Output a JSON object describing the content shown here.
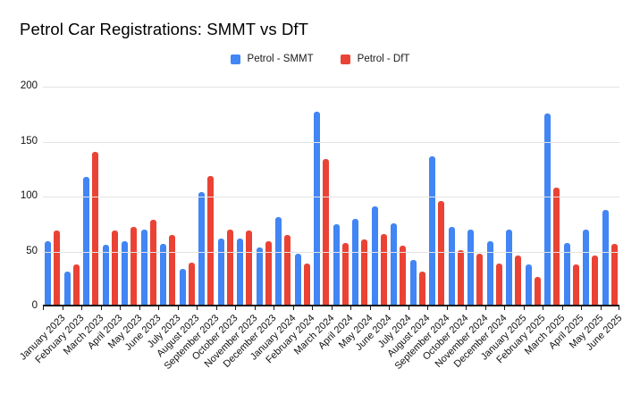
{
  "title": "Petrol Car Registrations: SMMT vs DfT",
  "colors": {
    "smmt_blue": "#4285f4",
    "dft_red": "#ea4335",
    "gridline": "#e3e3e3",
    "axis": "#171717",
    "background": "#ffffff"
  },
  "chart_data": {
    "type": "bar",
    "title": "Petrol Car Registrations: SMMT vs DfT",
    "xlabel": "",
    "ylabel": "",
    "ylim": [
      0,
      200
    ],
    "yticks": [
      0,
      50,
      100,
      150,
      200
    ],
    "grid": true,
    "legend_position": "top-center",
    "categories": [
      "January 2023",
      "February 2023",
      "March 2023",
      "April 2023",
      "May 2023",
      "June 2023",
      "July 2023",
      "August 2023",
      "September 2023",
      "October 2023",
      "November 2023",
      "December 2023",
      "January 2024",
      "February 2024",
      "March 2024",
      "April 2024",
      "May 2024",
      "June 2024",
      "July 2024",
      "August 2024",
      "September 2024",
      "October 2024",
      "November 2024",
      "December 2024",
      "January 2025",
      "February 2025",
      "March 2025",
      "April 2025",
      "May 2025",
      "June 2025"
    ],
    "series": [
      {
        "name": "Petrol - SMMT",
        "color": "#4285f4",
        "values": [
          59,
          32,
          118,
          56,
          59,
          70,
          57,
          34,
          104,
          62,
          62,
          54,
          81,
          48,
          177,
          75,
          80,
          91,
          76,
          42,
          137,
          72,
          70,
          59,
          70,
          38,
          176,
          58,
          70,
          88
        ]
      },
      {
        "name": "Petrol - DfT",
        "color": "#ea4335",
        "values": [
          69,
          38,
          141,
          69,
          72,
          79,
          65,
          40,
          119,
          70,
          69,
          59,
          65,
          39,
          134,
          58,
          61,
          66,
          55,
          32,
          96,
          51,
          48,
          39,
          46,
          27,
          108,
          38,
          46,
          57
        ]
      }
    ]
  }
}
